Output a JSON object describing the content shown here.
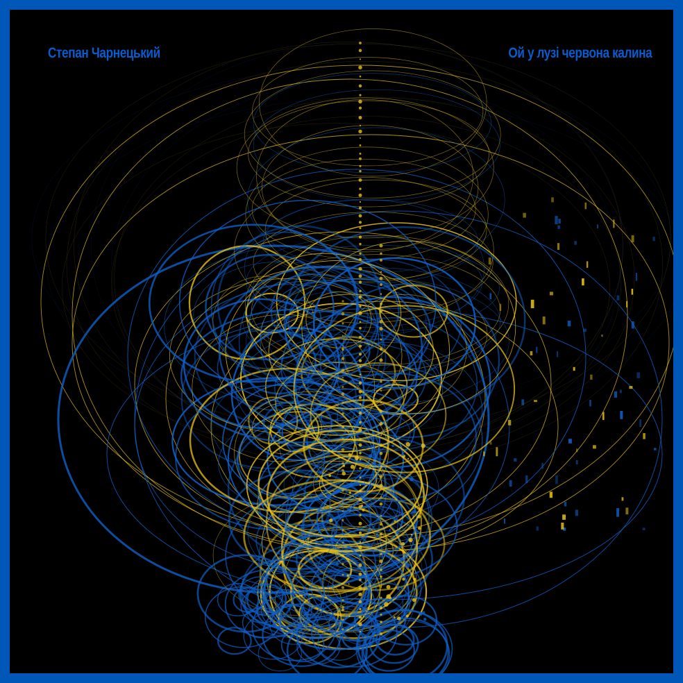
{
  "artwork": {
    "composer": "Степан Чарнецький",
    "song": "Ой у лузі червона калина"
  },
  "colors": {
    "frame": "#0057b8",
    "background": "#000000",
    "blue": "#1060c8",
    "yellow": "#e8c21a",
    "label": "#0a5ccc"
  }
}
